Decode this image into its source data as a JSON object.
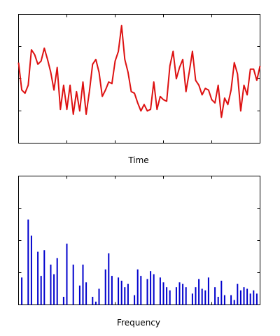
{
  "chart_data": [
    {
      "type": "line",
      "title": "",
      "xlabel": "Time",
      "ylabel": "",
      "xlim": [
        0,
        75
      ],
      "ylim": [
        -2,
        2
      ],
      "grid": false,
      "legend": "none",
      "series": [
        {
          "color": "#dd1111",
          "x": [
            0,
            1,
            2,
            3,
            4,
            5,
            6,
            7,
            8,
            9,
            10,
            11,
            12,
            13,
            14,
            15,
            16,
            17,
            18,
            19,
            20,
            21,
            22,
            23,
            24,
            25,
            26,
            27,
            28,
            29,
            30,
            31,
            32,
            33,
            34,
            35,
            36,
            37,
            38,
            39,
            40,
            41,
            42,
            43,
            44,
            45,
            46,
            47,
            48,
            49,
            50,
            51,
            52,
            53,
            54,
            55,
            56,
            57,
            58,
            59,
            60,
            61,
            62,
            63,
            64,
            65,
            66,
            67,
            68,
            69,
            70,
            71,
            72,
            73,
            74,
            75
          ],
          "y": [
            0.5,
            -0.35,
            -0.45,
            -0.2,
            0.9,
            0.75,
            0.45,
            0.55,
            0.95,
            0.6,
            0.2,
            -0.35,
            0.35,
            -0.95,
            -0.2,
            -0.95,
            -0.2,
            -1.1,
            -0.4,
            -1.0,
            -0.1,
            -1.1,
            -0.4,
            0.45,
            0.6,
            0.2,
            -0.55,
            -0.35,
            -0.1,
            -0.15,
            0.55,
            0.85,
            1.65,
            0.6,
            0.2,
            -0.4,
            -0.45,
            -0.75,
            -1.0,
            -0.8,
            -1.0,
            -0.95,
            -0.1,
            -0.95,
            -0.55,
            -0.65,
            -0.7,
            0.4,
            0.85,
            0.0,
            0.35,
            0.6,
            -0.4,
            0.2,
            0.85,
            -0.05,
            -0.2,
            -0.5,
            -0.3,
            -0.35,
            -0.65,
            -0.75,
            -0.2,
            -1.2,
            -0.6,
            -0.8,
            -0.35,
            0.5,
            0.15,
            -1.0,
            -0.2,
            -0.5,
            0.3,
            0.3,
            -0.05,
            0.4
          ]
        }
      ]
    },
    {
      "type": "bar",
      "title": "",
      "xlabel": "Frequency",
      "ylabel": "",
      "xlim": [
        0,
        75
      ],
      "ylim": [
        0,
        4
      ],
      "grid": false,
      "legend": "none",
      "series": [
        {
          "color": "#0000cc",
          "x": [
            1,
            3,
            4,
            6,
            7,
            8,
            10,
            11,
            12,
            14,
            15,
            17,
            19,
            20,
            21,
            23,
            24,
            25,
            27,
            28,
            29,
            31,
            32,
            33,
            34,
            36,
            37,
            38,
            40,
            41,
            42,
            44,
            45,
            46,
            47,
            49,
            50,
            51,
            52,
            54,
            55,
            56,
            57,
            58,
            59,
            61,
            62,
            63,
            64,
            66,
            67,
            68,
            69,
            70,
            71,
            72,
            73,
            74
          ],
          "values": [
            0.85,
            2.65,
            2.15,
            1.65,
            0.9,
            1.7,
            1.25,
            0.95,
            1.45,
            0.25,
            1.9,
            1.25,
            0.6,
            1.25,
            0.7,
            0.25,
            0.1,
            0.5,
            1.1,
            1.6,
            0.9,
            0.85,
            0.75,
            0.55,
            0.65,
            0.3,
            1.1,
            0.9,
            0.8,
            1.05,
            0.95,
            0.85,
            0.7,
            0.55,
            0.45,
            0.55,
            0.7,
            0.65,
            0.55,
            0.35,
            0.55,
            0.8,
            0.5,
            0.45,
            0.85,
            0.55,
            0.25,
            0.75,
            0.3,
            0.3,
            0.15,
            0.65,
            0.45,
            0.55,
            0.5,
            0.35,
            0.45,
            0.35
          ]
        }
      ]
    }
  ]
}
